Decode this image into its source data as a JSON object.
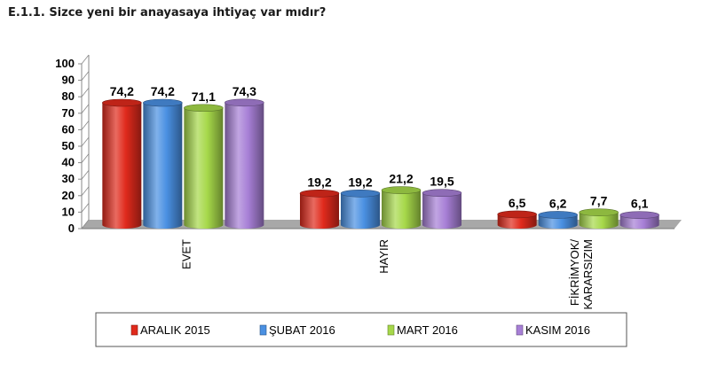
{
  "title": "E.1.1. Sizce yeni bir anayasaya ihtiyaç var mıdır?",
  "chart_data": {
    "type": "bar",
    "title": "E.1.1. Sizce yeni bir anayasaya ihtiyaç var mıdır?",
    "categories": [
      "EVET",
      "HAYIR",
      "FİKRİM YOK/ KARARSIZIM"
    ],
    "category_lines": [
      [
        "EVET"
      ],
      [
        "HAYIR"
      ],
      [
        "FİKRİMYOK/",
        "KARARSIZIM"
      ]
    ],
    "series": [
      {
        "name": "ARALIK 2015",
        "values": [
          74.2,
          19.2,
          6.5
        ],
        "labels": [
          "74,2",
          "19,2",
          "6,5"
        ],
        "color": "#e02a1c"
      },
      {
        "name": "ŞUBAT 2016",
        "values": [
          74.2,
          19.2,
          6.2
        ],
        "labels": [
          "74,2",
          "19,2",
          "6,2"
        ],
        "color": "#4a90e2"
      },
      {
        "name": "MART 2016",
        "values": [
          71.1,
          21.2,
          7.7
        ],
        "labels": [
          "71,1",
          "21,2",
          "7,7"
        ],
        "color": "#a6d84a"
      },
      {
        "name": "KASIM 2016",
        "values": [
          74.3,
          19.5,
          6.1
        ],
        "labels": [
          "74,3",
          "19,5",
          "6,1"
        ],
        "color": "#a77fd6"
      }
    ],
    "ylim": [
      0,
      100
    ],
    "yticks": [
      0,
      10,
      20,
      30,
      40,
      50,
      60,
      70,
      80,
      90,
      100
    ],
    "legend_position": "bottom",
    "grid": false,
    "colors": {
      "wall": "#ffffff",
      "floor": "#a8a8a8",
      "axis": "#888888"
    }
  }
}
